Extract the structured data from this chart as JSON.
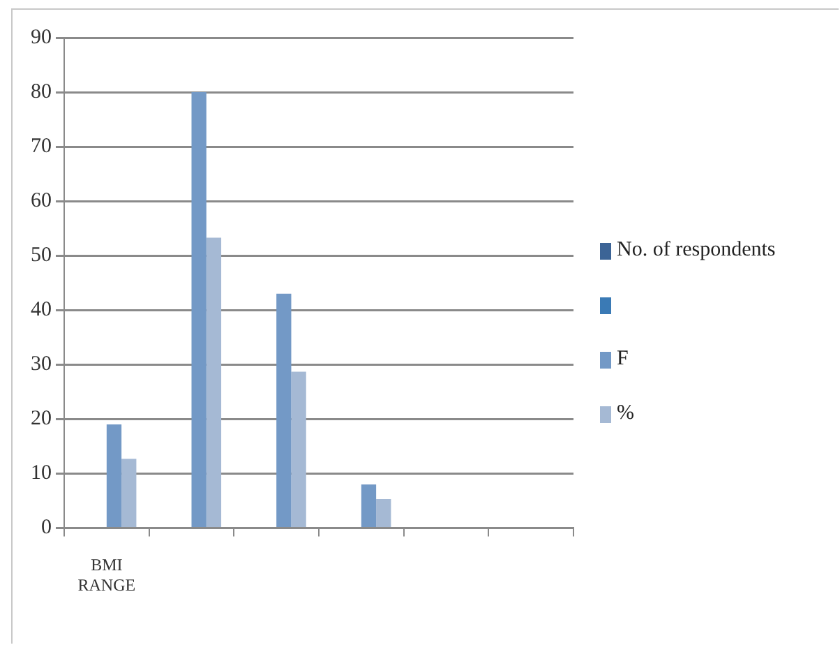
{
  "chart_data": {
    "type": "bar",
    "categories": [
      "BMI RANGE",
      null,
      null,
      null,
      null,
      null
    ],
    "series": [
      {
        "name": "No. of respondents",
        "color": "#3c6496",
        "values": [
          null,
          null,
          null,
          null,
          null,
          null
        ]
      },
      {
        "color": "#3a7ab5",
        "values": [
          null,
          null,
          null,
          null,
          null,
          null
        ]
      },
      {
        "name": "F",
        "color": "#7399c6",
        "values": [
          19,
          80,
          43,
          8,
          null,
          null
        ]
      },
      {
        "name": "%",
        "color": "#a5b9d4",
        "values": [
          12.7,
          53.3,
          28.7,
          5.3,
          null,
          null
        ]
      }
    ],
    "ylim": [
      0,
      90
    ],
    "yticks": [
      0,
      10,
      20,
      30,
      40,
      50,
      60,
      70,
      80,
      90
    ],
    "grid": "y",
    "legend": "right"
  }
}
